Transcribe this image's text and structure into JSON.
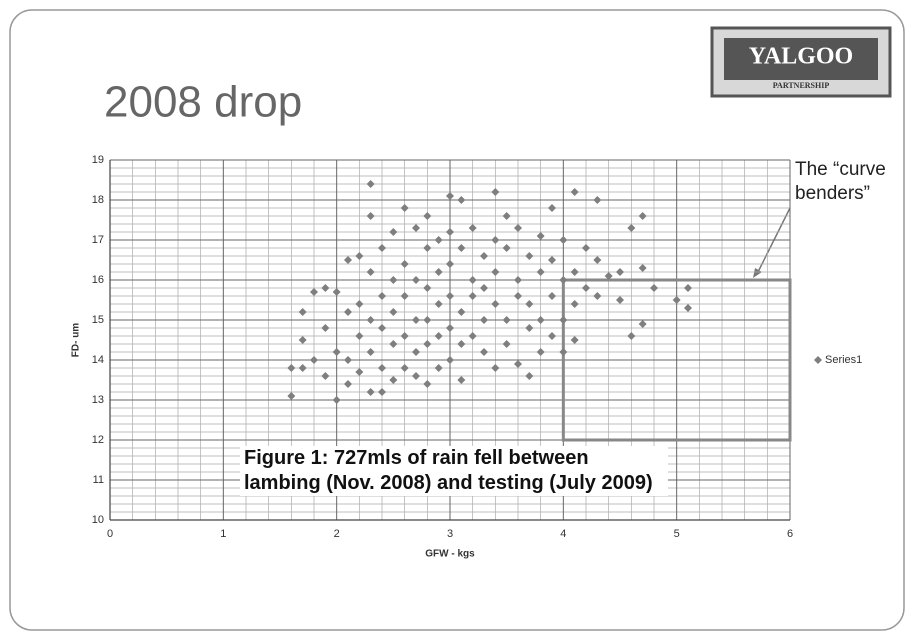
{
  "chart_data": {
    "type": "scatter",
    "title": "2008 drop",
    "x_label": "GFW - kgs",
    "y_label": "FD- um",
    "annotation": "The “curve benders”",
    "caption": "Figure 1: 727mls of rain fell between lambing (Nov. 2008) and testing (July 2009)",
    "logo": {
      "name": "YALGOO",
      "tagline": "PARTNERSHIP"
    },
    "xlim": [
      0,
      6
    ],
    "ylim": [
      10,
      19
    ],
    "xticks": [
      0,
      1,
      2,
      3,
      4,
      5,
      6
    ],
    "yticks": [
      10,
      11,
      12,
      13,
      14,
      15,
      16,
      17,
      18,
      19
    ],
    "grid": true,
    "minor_grid": 5,
    "legend": "right",
    "highlight_box": {
      "x": [
        4,
        6
      ],
      "y": [
        12,
        16
      ]
    },
    "x": [
      1.6,
      1.6,
      1.7,
      1.7,
      1.7,
      1.8,
      1.8,
      1.9,
      1.9,
      1.9,
      2.0,
      2.0,
      2.0,
      2.1,
      2.1,
      2.1,
      2.1,
      2.2,
      2.2,
      2.2,
      2.2,
      2.3,
      2.3,
      2.3,
      2.3,
      2.3,
      2.3,
      2.4,
      2.4,
      2.4,
      2.4,
      2.4,
      2.5,
      2.5,
      2.5,
      2.5,
      2.5,
      2.6,
      2.6,
      2.6,
      2.6,
      2.6,
      2.7,
      2.7,
      2.7,
      2.7,
      2.7,
      2.8,
      2.8,
      2.8,
      2.8,
      2.8,
      2.8,
      2.9,
      2.9,
      2.9,
      2.9,
      2.9,
      3.0,
      3.0,
      3.0,
      3.0,
      3.0,
      3.0,
      3.1,
      3.1,
      3.1,
      3.1,
      3.1,
      3.2,
      3.2,
      3.2,
      3.2,
      3.3,
      3.3,
      3.3,
      3.3,
      3.4,
      3.4,
      3.4,
      3.4,
      3.4,
      3.5,
      3.5,
      3.5,
      3.5,
      3.6,
      3.6,
      3.6,
      3.6,
      3.7,
      3.7,
      3.7,
      3.7,
      3.8,
      3.8,
      3.8,
      3.8,
      3.9,
      3.9,
      3.9,
      3.9,
      4.0,
      4.0,
      4.0,
      4.0,
      4.1,
      4.1,
      4.1,
      4.1,
      4.2,
      4.2,
      4.3,
      4.3,
      4.3,
      4.4,
      4.5,
      4.5,
      4.6,
      4.6,
      4.7,
      4.7,
      4.7,
      4.8,
      5.0,
      5.1,
      5.1
    ],
    "series": [
      {
        "name": "Series1",
        "color": "#7f7f7f",
        "values": [
          13.1,
          13.8,
          15.2,
          14.5,
          13.8,
          14.0,
          15.7,
          15.8,
          13.6,
          14.8,
          13.0,
          15.7,
          14.2,
          16.5,
          15.2,
          14.0,
          13.4,
          16.6,
          15.4,
          14.6,
          13.7,
          18.4,
          17.6,
          16.2,
          15.0,
          14.2,
          13.2,
          16.8,
          15.6,
          14.8,
          13.8,
          13.2,
          17.2,
          16.0,
          15.2,
          14.4,
          13.5,
          17.8,
          16.4,
          15.6,
          14.6,
          13.8,
          17.3,
          16.0,
          15.0,
          14.2,
          13.6,
          17.6,
          16.8,
          15.8,
          15.0,
          14.4,
          13.4,
          17.0,
          16.2,
          15.4,
          14.6,
          13.8,
          18.1,
          17.2,
          16.4,
          15.6,
          14.8,
          14.0,
          18.0,
          16.8,
          15.2,
          14.4,
          13.5,
          17.3,
          16.0,
          15.6,
          14.6,
          16.6,
          15.8,
          15.0,
          14.2,
          18.2,
          17.0,
          16.2,
          15.4,
          13.8,
          17.6,
          16.8,
          15.0,
          14.4,
          17.3,
          16.0,
          15.6,
          13.9,
          16.6,
          15.4,
          14.8,
          13.6,
          17.1,
          16.2,
          15.0,
          14.2,
          17.8,
          16.5,
          15.6,
          14.6,
          17.0,
          16.0,
          15.0,
          14.2,
          18.2,
          16.2,
          15.4,
          14.5,
          16.8,
          15.8,
          18.0,
          16.5,
          15.6,
          16.1,
          16.2,
          15.5,
          17.3,
          14.6,
          17.6,
          16.3,
          14.9,
          15.8,
          15.5,
          15.8,
          15.3
        ]
      }
    ]
  }
}
